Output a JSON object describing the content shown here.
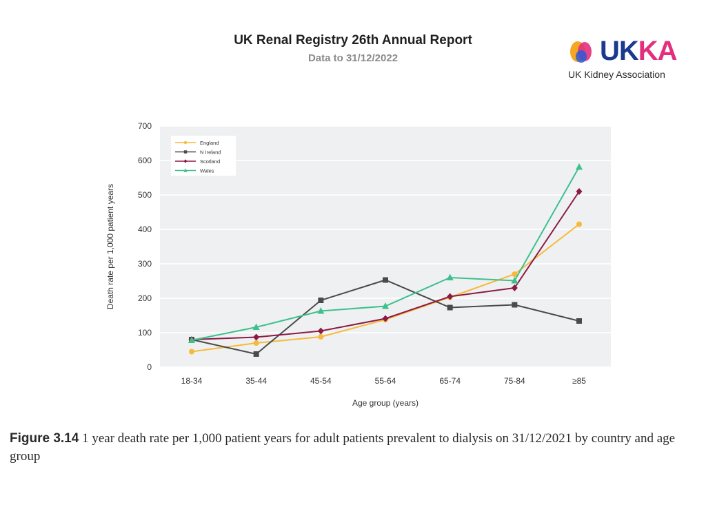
{
  "header": {
    "title": "UK Renal Registry 26th Annual Report",
    "subtitle": "Data to 31/12/2022"
  },
  "logo": {
    "wordmark_uk": "UK",
    "wordmark_ka": "KA",
    "tagline": "UK Kidney Association"
  },
  "caption": {
    "figure_label": "Figure 3.14",
    "text": "1 year death rate per 1,000 patient years for adult patients prevalent to dialysis on 31/12/2021 by country and age group"
  },
  "colors": {
    "England": "#f8b93a",
    "N Ireland": "#4a4a4a",
    "Scotland": "#8b1a44",
    "Wales": "#3cc08c",
    "plot_bg": "#eef0f1"
  },
  "chart_data": {
    "type": "line",
    "title": "",
    "xlabel": "Age group (years)",
    "ylabel": "Death rate per 1,000 patient years",
    "categories": [
      "18-34",
      "35-44",
      "45-54",
      "55-64",
      "65-74",
      "75-84",
      "≥85"
    ],
    "ylim": [
      0,
      700
    ],
    "yticks": [
      0,
      100,
      200,
      300,
      400,
      500,
      600,
      700
    ],
    "legend_position": "top-left",
    "grid": true,
    "series": [
      {
        "name": "England",
        "marker": "circle",
        "values": [
          45,
          70,
          88,
          138,
          203,
          270,
          415
        ]
      },
      {
        "name": "N Ireland",
        "marker": "square",
        "values": [
          80,
          38,
          194,
          253,
          173,
          181,
          134
        ]
      },
      {
        "name": "Scotland",
        "marker": "diamond",
        "values": [
          80,
          87,
          105,
          141,
          205,
          230,
          510
        ]
      },
      {
        "name": "Wales",
        "marker": "triangle",
        "values": [
          78,
          116,
          163,
          177,
          260,
          251,
          581
        ]
      }
    ]
  }
}
